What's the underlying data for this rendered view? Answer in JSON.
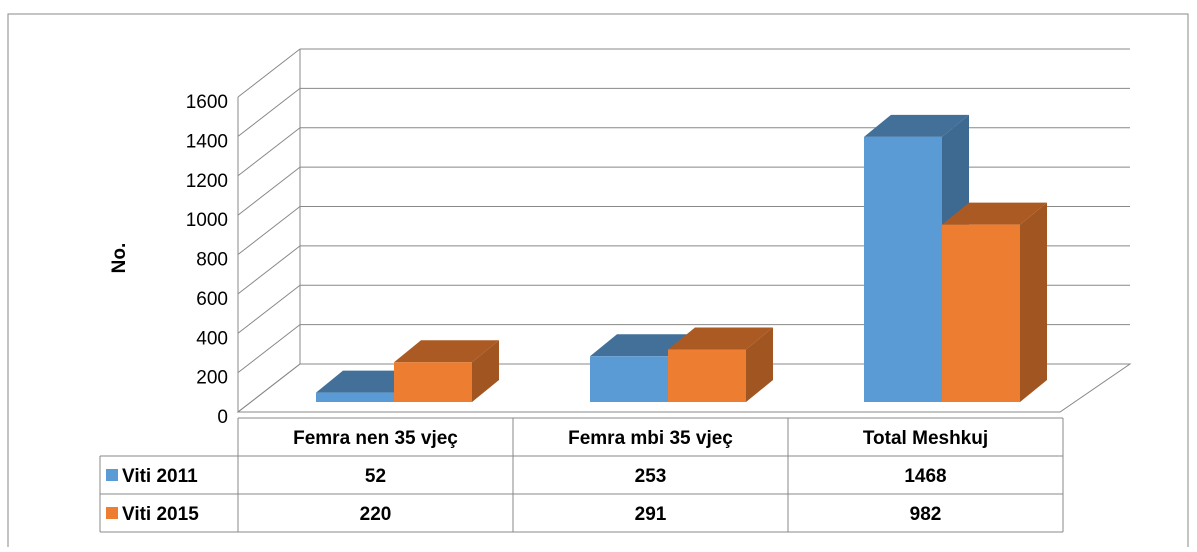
{
  "chart_data": {
    "type": "bar3d",
    "y_label": "No.",
    "categories": [
      "Femra nen 35 vjeç",
      "Femra mbi 35 vjeç",
      "Total Meshkuj"
    ],
    "series": [
      {
        "name": "Viti 2011",
        "color": "#5b9bd5",
        "values": [
          52,
          253,
          1468
        ]
      },
      {
        "name": "Viti 2015",
        "color": "#ed7d31",
        "values": [
          220,
          291,
          982
        ]
      }
    ],
    "ylim": [
      0,
      1600
    ],
    "yticks": [
      0,
      200,
      400,
      600,
      800,
      1000,
      1200,
      1400,
      1600
    ],
    "grid": true,
    "data_table": true
  }
}
